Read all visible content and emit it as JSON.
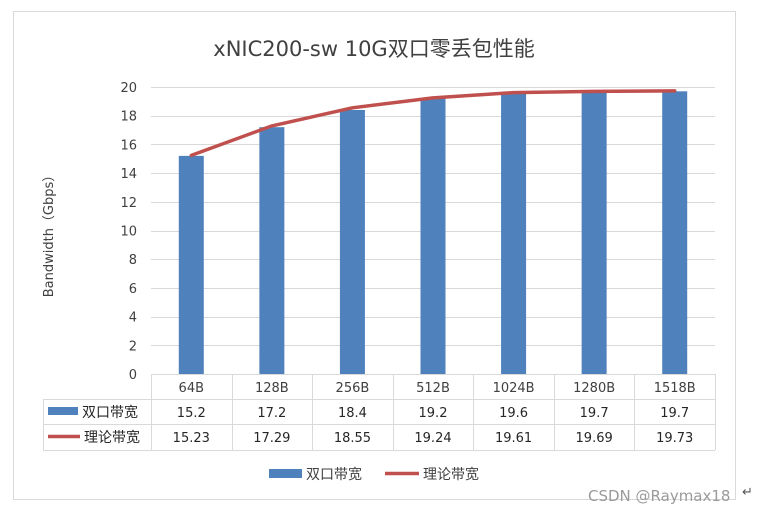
{
  "chart_data": {
    "type": "bar",
    "title": "xNIC200-sw  10G双口零丢包性能",
    "ylabel": "Bandwidth（Gbps）",
    "xlabel": "",
    "categories": [
      "64B",
      "128B",
      "256B",
      "512B",
      "1024B",
      "1280B",
      "1518B"
    ],
    "ylim": [
      0,
      20
    ],
    "yticks": [
      0,
      2,
      4,
      6,
      8,
      10,
      12,
      14,
      16,
      18,
      20
    ],
    "grid": true,
    "legend": "bottom",
    "series": [
      {
        "name": "双口带宽",
        "kind": "bar",
        "color": "#4f81bd",
        "values": [
          15.2,
          17.2,
          18.4,
          19.2,
          19.6,
          19.7,
          19.7
        ],
        "labels": [
          "15.2",
          "17.2",
          "18.4",
          "19.2",
          "19.6",
          "19.7",
          "19.7"
        ]
      },
      {
        "name": "理论带宽",
        "kind": "line",
        "color": "#c0504d",
        "values": [
          15.23,
          17.29,
          18.55,
          19.24,
          19.61,
          19.69,
          19.73
        ],
        "labels": [
          "15.23",
          "17.29",
          "18.55",
          "19.24",
          "19.61",
          "19.69",
          "19.73"
        ]
      }
    ]
  },
  "watermark": "CSDN @Raymax18",
  "corner_mark": "↵"
}
